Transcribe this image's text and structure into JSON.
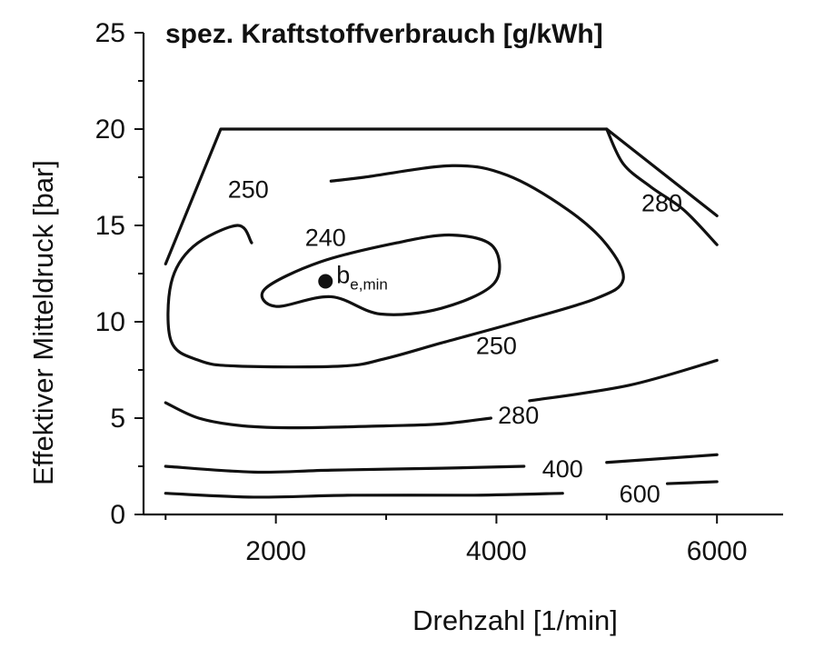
{
  "chart_data": {
    "type": "contour",
    "title": "spez. Kraftstoffverbrauch [g/kWh]",
    "xlabel": "Drehzahl [1/min]",
    "ylabel": "Effektiver Mitteldruck [bar]",
    "xlim": [
      800,
      6600
    ],
    "ylim": [
      0,
      25
    ],
    "xticks": [
      2000,
      4000,
      6000
    ],
    "yticks": [
      0,
      5,
      10,
      15,
      20,
      25
    ],
    "grid": false,
    "full_load_line": {
      "x": [
        1000,
        1500,
        5000,
        6000
      ],
      "y": [
        13,
        20,
        20,
        15.5
      ]
    },
    "contours": [
      {
        "level": "240",
        "closed": true,
        "points": [
          [
            2500,
            11.3
          ],
          [
            2950,
            10.4
          ],
          [
            3500,
            10.7
          ],
          [
            3980,
            12.0
          ],
          [
            3970,
            13.9
          ],
          [
            3600,
            14.5
          ],
          [
            3100,
            14.1
          ],
          [
            2400,
            13.1
          ],
          [
            1900,
            11.7
          ],
          [
            2000,
            10.8
          ]
        ]
      },
      {
        "level": "250",
        "closed": false,
        "points": [
          [
            1780,
            14.1
          ],
          [
            1650,
            15.0
          ],
          [
            1250,
            13.9
          ],
          [
            1050,
            12.0
          ],
          [
            1050,
            9.0
          ],
          [
            1300,
            8.0
          ],
          [
            1650,
            7.7
          ],
          [
            2600,
            7.7
          ],
          [
            3000,
            8.1
          ],
          [
            3500,
            8.9
          ],
          [
            4200,
            10.0
          ],
          [
            4900,
            11.2
          ],
          [
            5150,
            12.2
          ],
          [
            5000,
            14.0
          ],
          [
            4650,
            15.8
          ],
          [
            4100,
            17.6
          ],
          [
            3600,
            18.1
          ],
          [
            2800,
            17.5
          ],
          [
            2500,
            17.3
          ]
        ]
      },
      {
        "level": "280",
        "closed": false,
        "points": [
          [
            1000,
            5.8
          ],
          [
            1300,
            5.0
          ],
          [
            1700,
            4.6
          ],
          [
            2200,
            4.5
          ],
          [
            3000,
            4.6
          ],
          [
            3500,
            4.7
          ],
          [
            3950,
            5.0
          ]
        ]
      },
      {
        "level": "280",
        "closed": false,
        "points": [
          [
            4300,
            5.9
          ],
          [
            5200,
            6.7
          ],
          [
            6000,
            8.0
          ]
        ]
      },
      {
        "level": "400",
        "closed": false,
        "points": [
          [
            1000,
            2.5
          ],
          [
            1800,
            2.2
          ],
          [
            2500,
            2.3
          ],
          [
            3500,
            2.4
          ],
          [
            4250,
            2.5
          ]
        ]
      },
      {
        "level": "400",
        "closed": false,
        "points": [
          [
            5000,
            2.7
          ],
          [
            6000,
            3.1
          ]
        ]
      },
      {
        "level": "600",
        "closed": false,
        "points": [
          [
            1000,
            1.1
          ],
          [
            1800,
            0.9
          ],
          [
            2700,
            1.0
          ],
          [
            3800,
            1.0
          ],
          [
            4600,
            1.1
          ]
        ]
      },
      {
        "level": "600",
        "closed": false,
        "points": [
          [
            5550,
            1.6
          ],
          [
            6000,
            1.7
          ]
        ]
      },
      {
        "level": "280",
        "closed": false,
        "points": [
          [
            5000,
            20
          ],
          [
            5150,
            18.2
          ],
          [
            5400,
            17.0
          ],
          [
            5700,
            15.8
          ],
          [
            6000,
            14.0
          ]
        ]
      }
    ],
    "contour_labels": [
      {
        "text": "250",
        "x": 1750,
        "y": 16.9
      },
      {
        "text": "240",
        "x": 2450,
        "y": 14.4
      },
      {
        "text": "250",
        "x": 4000,
        "y": 8.8
      },
      {
        "text": "280",
        "x": 4200,
        "y": 5.2
      },
      {
        "text": "400",
        "x": 4600,
        "y": 2.4
      },
      {
        "text": "600",
        "x": 5300,
        "y": 1.1
      },
      {
        "text": "280",
        "x": 5500,
        "y": 16.2
      }
    ],
    "marker": {
      "x": 2450,
      "y": 12.1,
      "label": "b",
      "subscript": "e,min"
    }
  }
}
